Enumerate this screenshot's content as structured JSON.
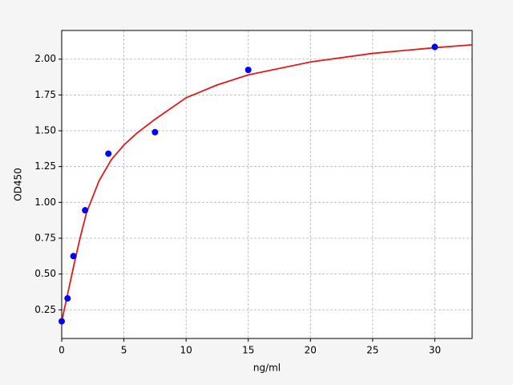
{
  "chart_data": {
    "type": "scatter",
    "x_label": "ng/ml",
    "y_label": "OD450",
    "xlim": [
      0,
      33
    ],
    "ylim": [
      0.05,
      2.2
    ],
    "xticks": [
      0,
      5,
      10,
      15,
      20,
      25,
      30
    ],
    "yticks": [
      0.25,
      {
        "value": 0.5,
        "label": "0.50"
      },
      0.75,
      {
        "value": 1,
        "label": "1.00"
      },
      1.25,
      {
        "value": 1.5,
        "label": "1.50"
      },
      1.75,
      {
        "value": 2,
        "label": "2.00"
      }
    ],
    "grid": true,
    "series": [
      {
        "type": "scatter",
        "color": "#0000ff",
        "x": [
          0,
          0.47,
          0.94,
          1.88,
          3.75,
          7.5,
          15,
          30
        ],
        "values": [
          0.17,
          0.33,
          0.625,
          0.945,
          1.34,
          1.49,
          1.925,
          2.085
        ]
      },
      {
        "type": "line",
        "color": "#e31a1c",
        "x": [
          0,
          0.25,
          0.5,
          1,
          1.5,
          2,
          3,
          4,
          5,
          6,
          7.5,
          10,
          12.5,
          15,
          20,
          25,
          30,
          33
        ],
        "values": [
          0.17,
          0.27,
          0.37,
          0.57,
          0.76,
          0.93,
          1.15,
          1.3,
          1.4,
          1.48,
          1.58,
          1.73,
          1.82,
          1.89,
          1.98,
          2.04,
          2.08,
          2.1
        ]
      }
    ]
  }
}
